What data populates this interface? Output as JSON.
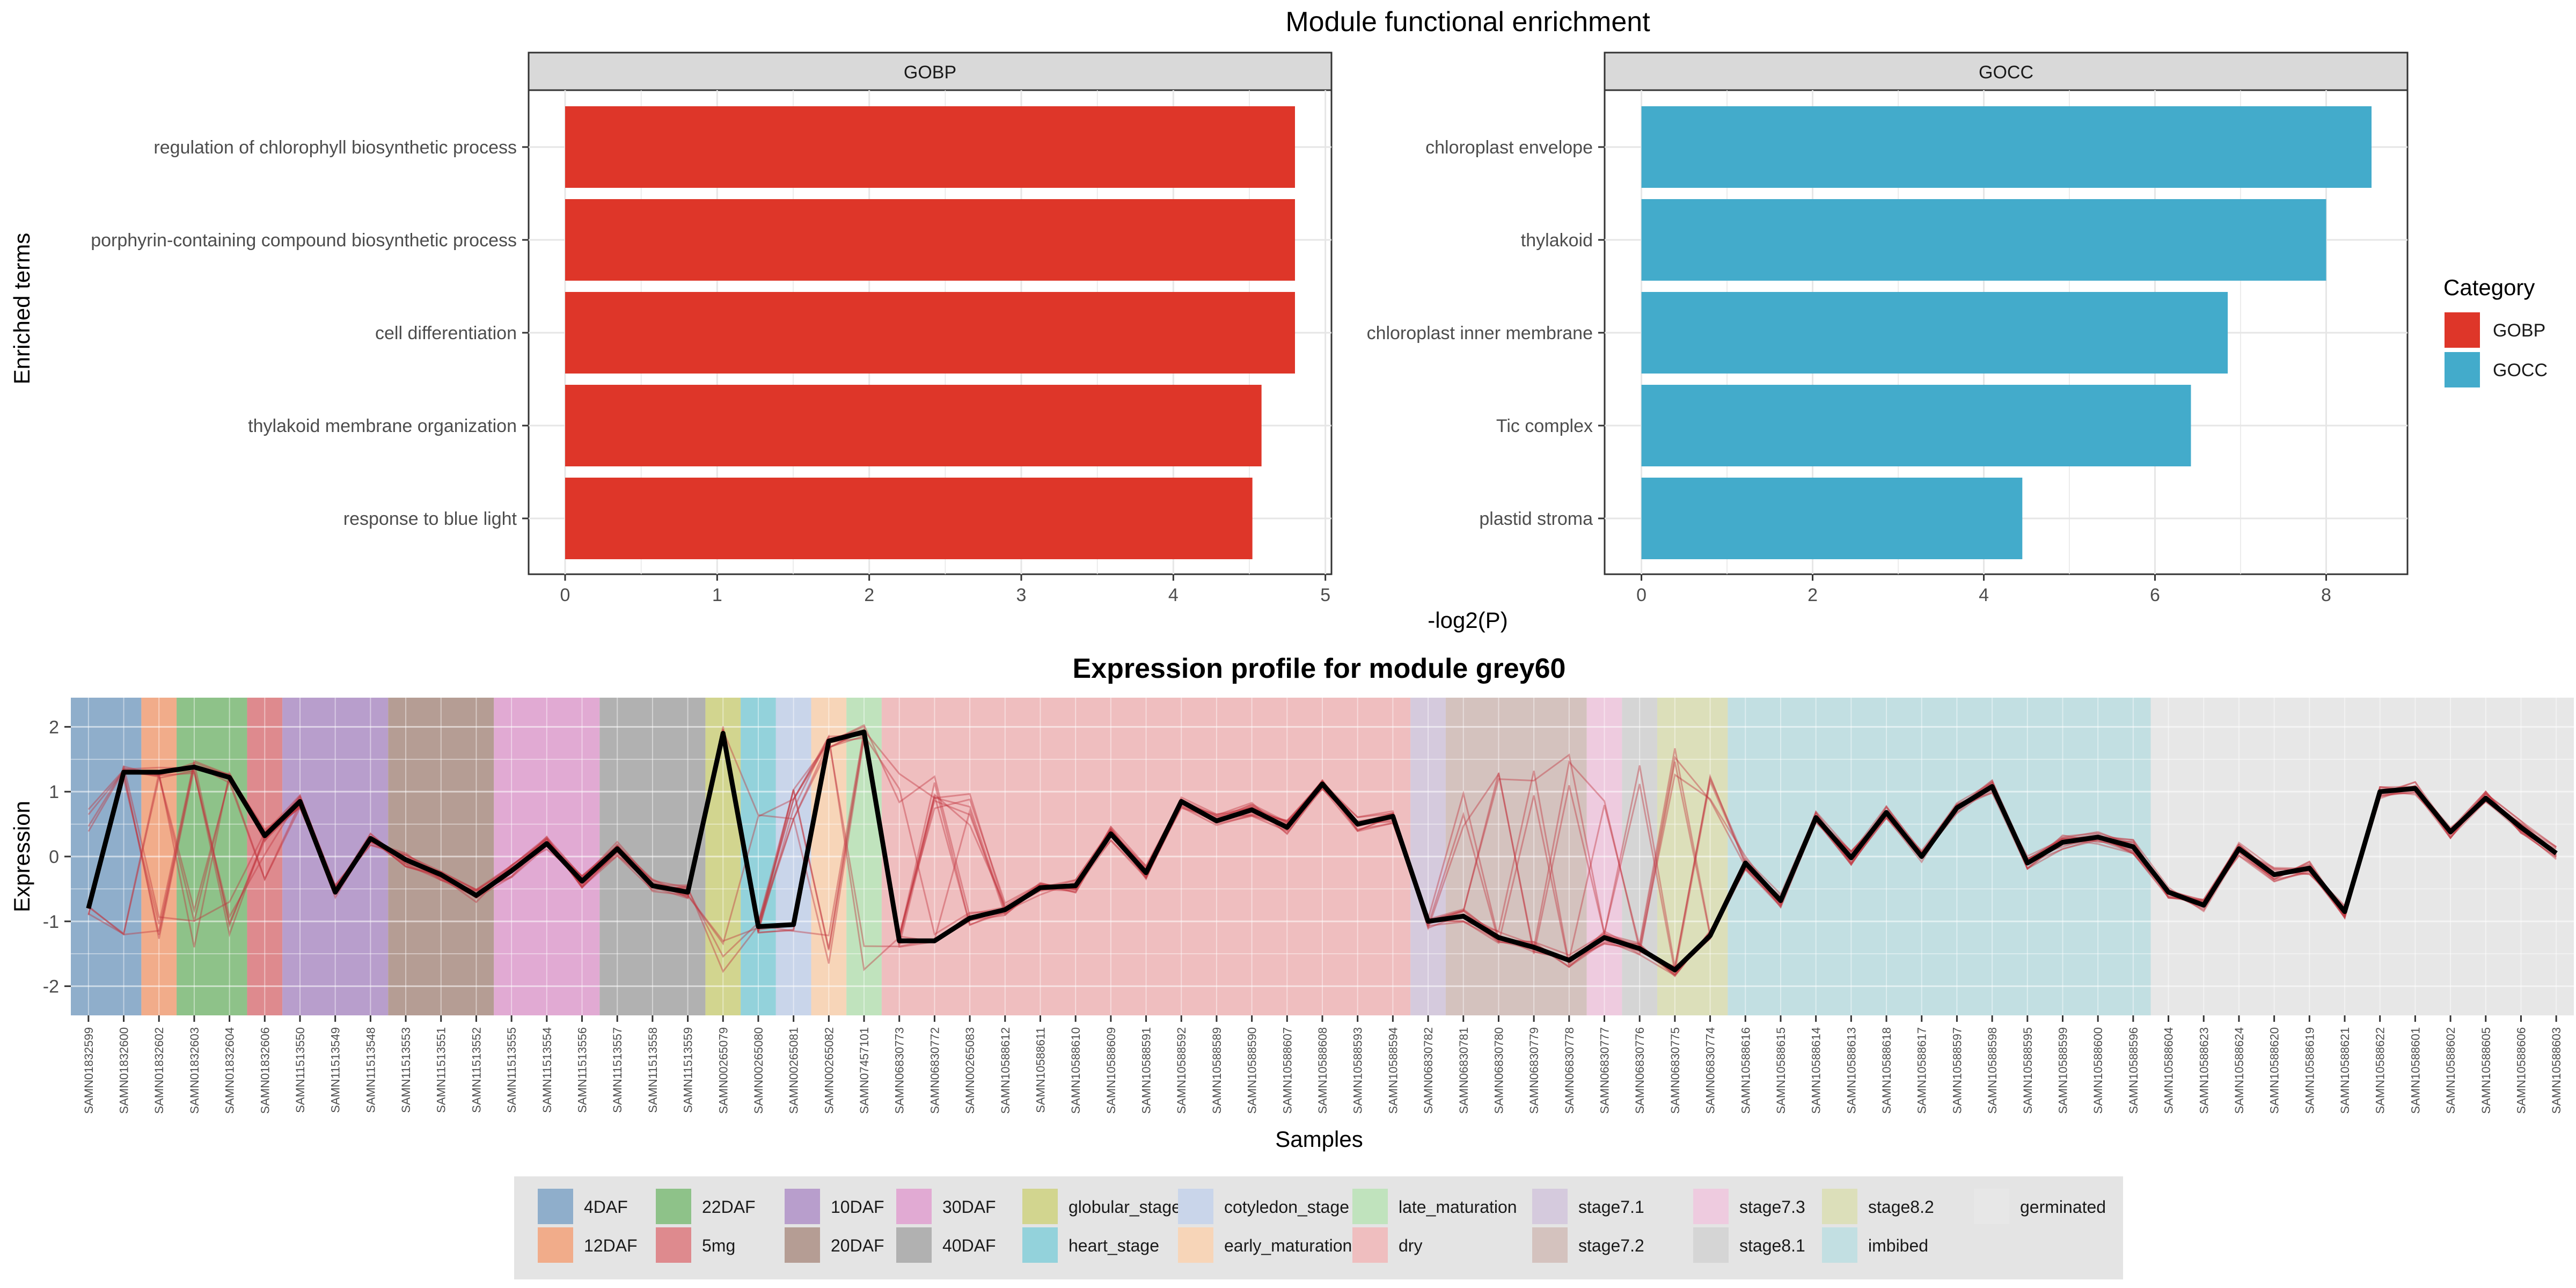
{
  "chart_data": [
    {
      "type": "bar",
      "title": "Module functional enrichment",
      "xlabel": "-log2(P)",
      "ylabel": "Enriched terms",
      "legend": {
        "title": "Category",
        "placement": "right",
        "entries": [
          {
            "label": "GOBP",
            "color": "#DE3629"
          },
          {
            "label": "GOCC",
            "color": "#43ABCB"
          }
        ]
      },
      "panels": [
        {
          "strip": "GOBP",
          "color": "#DE3629",
          "xlim": [
            -0.24,
            5.04
          ],
          "xticks": [
            "0",
            "1",
            "2",
            "3",
            "4",
            "5"
          ],
          "categories": [
            "regulation of chlorophyll biosynthetic process",
            "porphyrin-containing compound biosynthetic process",
            "cell differentiation",
            "thylakoid membrane organization",
            "response to blue light"
          ],
          "values": [
            4.8,
            4.8,
            4.8,
            4.58,
            4.52
          ]
        },
        {
          "strip": "GOCC",
          "color": "#43ABCB",
          "xlim": [
            -0.43,
            8.95
          ],
          "xticks": [
            "0",
            "2",
            "4",
            "6",
            "8"
          ],
          "categories": [
            "chloroplast envelope",
            "thylakoid",
            "chloroplast inner membrane",
            "Tic complex",
            "plastid stroma"
          ],
          "values": [
            8.53,
            8.0,
            6.85,
            6.42,
            4.45
          ]
        }
      ]
    },
    {
      "type": "line",
      "title": "Expression profile for module grey60",
      "xlabel": "Samples",
      "ylabel": "Expression",
      "ylim": [
        -2.45,
        2.45
      ],
      "yticks": [
        "-2",
        "-1",
        "0",
        "1",
        "2"
      ],
      "grid": true,
      "legend_placement": "bottom",
      "x": [
        "SAMN01832599",
        "SAMN01832600",
        "SAMN01832602",
        "SAMN01832603",
        "SAMN01832604",
        "SAMN01832606",
        "SAMN11513550",
        "SAMN11513549",
        "SAMN11513548",
        "SAMN11513553",
        "SAMN11513551",
        "SAMN11513552",
        "SAMN11513555",
        "SAMN11513554",
        "SAMN11513556",
        "SAMN11513557",
        "SAMN11513558",
        "SAMN11513559",
        "SAMN00265079",
        "SAMN00265080",
        "SAMN00265081",
        "SAMN00265082",
        "SAMN07457101",
        "SAMN06830773",
        "SAMN06830772",
        "SAMN00265083",
        "SAMN10588612",
        "SAMN10588611",
        "SAMN10588610",
        "SAMN10588609",
        "SAMN10588591",
        "SAMN10588592",
        "SAMN10588589",
        "SAMN10588590",
        "SAMN10588607",
        "SAMN10588608",
        "SAMN10588593",
        "SAMN10588594",
        "SAMN06830782",
        "SAMN06830781",
        "SAMN06830780",
        "SAMN06830779",
        "SAMN06830778",
        "SAMN06830777",
        "SAMN06830776",
        "SAMN06830775",
        "SAMN06830774",
        "SAMN10588616",
        "SAMN10588615",
        "SAMN10588614",
        "SAMN10588613",
        "SAMN10588618",
        "SAMN10588617",
        "SAMN10588597",
        "SAMN10588598",
        "SAMN10588595",
        "SAMN10588599",
        "SAMN10588600",
        "SAMN10588596",
        "SAMN10588604",
        "SAMN10588623",
        "SAMN10588624",
        "SAMN10588620",
        "SAMN10588619",
        "SAMN10588621",
        "SAMN10588622",
        "SAMN10588601",
        "SAMN10588602",
        "SAMN10588605",
        "SAMN10588606",
        "SAMN10588603"
      ],
      "series": [
        {
          "color": "#000000",
          "values": [
            -0.8,
            1.3,
            1.3,
            1.38,
            1.22,
            0.32,
            0.85,
            -0.55,
            0.28,
            -0.05,
            -0.28,
            -0.6,
            -0.22,
            0.2,
            -0.38,
            0.12,
            -0.45,
            -0.55,
            1.9,
            -1.08,
            -1.05,
            1.78,
            1.92,
            -1.3,
            -1.3,
            -0.95,
            -0.82,
            -0.48,
            -0.45,
            0.35,
            -0.25,
            0.85,
            0.55,
            0.72,
            0.45,
            1.12,
            0.5,
            0.62,
            -1.0,
            -0.92,
            -1.25,
            -1.4,
            -1.6,
            -1.25,
            -1.42,
            -1.75,
            -1.22,
            -0.1,
            -0.68,
            0.6,
            -0.02,
            0.68,
            0.0,
            0.75,
            1.08,
            -0.1,
            0.22,
            0.3,
            0.15,
            -0.55,
            -0.75,
            0.12,
            -0.28,
            -0.18,
            -0.85,
            1.0,
            1.05,
            0.38,
            0.9,
            0.45,
            0.05
          ]
        }
      ],
      "stage_bands": [
        {
          "label": "4DAF",
          "start": 0,
          "end": 1,
          "color": "#8FAECB"
        },
        {
          "label": "12DAF",
          "start": 2,
          "end": 2,
          "color": "#F1AC8A"
        },
        {
          "label": "22DAF",
          "start": 3,
          "end": 4,
          "color": "#8EC289"
        },
        {
          "label": "5mg",
          "start": 5,
          "end": 5,
          "color": "#DE8A8E"
        },
        {
          "label": "10DAF",
          "start": 6,
          "end": 8,
          "color": "#B89ECC"
        },
        {
          "label": "20DAF",
          "start": 9,
          "end": 11,
          "color": "#B59D94"
        },
        {
          "label": "30DAF",
          "start": 12,
          "end": 14,
          "color": "#E1AAD3"
        },
        {
          "label": "40DAF",
          "start": 15,
          "end": 17,
          "color": "#B1B1B1"
        },
        {
          "label": "globular_stage",
          "start": 18,
          "end": 18,
          "color": "#D2D58F"
        },
        {
          "label": "heart_stage",
          "start": 19,
          "end": 19,
          "color": "#93D2DB"
        },
        {
          "label": "cotyledon_stage",
          "start": 20,
          "end": 20,
          "color": "#C9D5EA"
        },
        {
          "label": "early_maturation",
          "start": 21,
          "end": 21,
          "color": "#F7D5B8"
        },
        {
          "label": "late_maturation",
          "start": 22,
          "end": 22,
          "color": "#C0E3BD"
        },
        {
          "label": "dry",
          "start": 23,
          "end": 37,
          "color": "#EFBEBF"
        },
        {
          "label": "stage7.1",
          "start": 38,
          "end": 38,
          "color": "#D5CADD"
        },
        {
          "label": "stage7.2",
          "start": 39,
          "end": 42,
          "color": "#D4C2BE"
        },
        {
          "label": "stage7.3",
          "start": 43,
          "end": 43,
          "color": "#EECBDF"
        },
        {
          "label": "stage8.1",
          "start": 44,
          "end": 44,
          "color": "#D5D5D5"
        },
        {
          "label": "stage8.2",
          "start": 45,
          "end": 46,
          "color": "#DCDFBA"
        },
        {
          "label": "imbibed",
          "start": 47,
          "end": 58,
          "color": "#C2DFE2"
        },
        {
          "label": "germinated",
          "start": 59,
          "end": 70,
          "color": "#E7E7E7"
        }
      ]
    }
  ]
}
